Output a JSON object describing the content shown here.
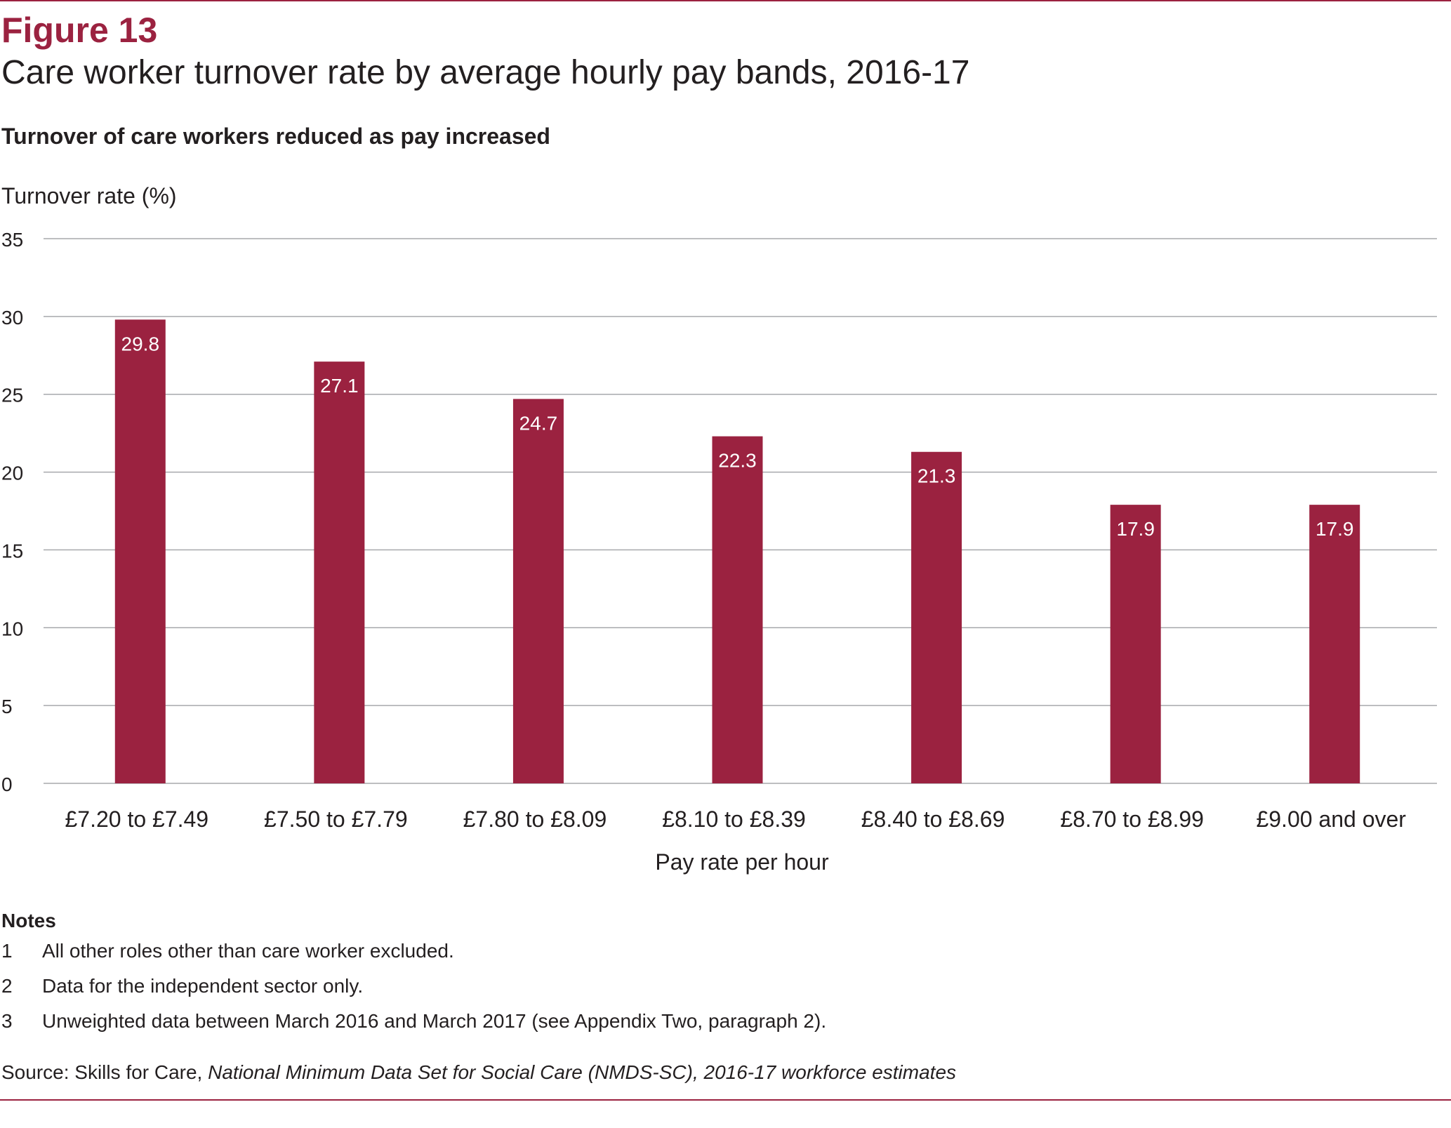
{
  "header": {
    "figure_number": "Figure 13",
    "figure_title": "Care worker turnover rate by average hourly pay bands, 2016-17",
    "subtitle": "Turnover of care workers reduced as pay increased"
  },
  "chart_data": {
    "type": "bar",
    "title": "Care worker turnover rate by average hourly pay bands, 2016-17",
    "subtitle": "Turnover of care workers reduced as pay increased",
    "ylabel": "Turnover rate (%)",
    "xlabel": "Pay rate per hour",
    "categories": [
      "£7.20 to £7.49",
      "£7.50 to £7.79",
      "£7.80 to £8.09",
      "£8.10 to £8.39",
      "£8.40 to £8.69",
      "£8.70 to £8.99",
      "£9.00 and over"
    ],
    "values": [
      29.8,
      27.1,
      24.7,
      22.3,
      21.3,
      17.9,
      17.9
    ],
    "data_labels": [
      "29.8",
      "27.1",
      "24.7",
      "22.3",
      "21.3",
      "17.9",
      "17.9"
    ],
    "ylim": [
      0,
      35
    ],
    "yticks": [
      "0",
      "5",
      "10",
      "15",
      "20",
      "25",
      "30",
      "35"
    ],
    "grid": true,
    "legend": "none",
    "bar_color": "#9b2240",
    "label_color": "#ffffff",
    "grid_color": "#a7a9ac"
  },
  "notes": {
    "heading": "Notes",
    "items": [
      {
        "num": "1",
        "text": "All other roles other than care worker excluded."
      },
      {
        "num": "2",
        "text": "Data for the independent sector only."
      },
      {
        "num": "3",
        "text": "Unweighted data between March 2016 and March 2017 (see Appendix Two, paragraph 2)."
      }
    ]
  },
  "source": {
    "prefix": "Source: Skills for Care, ",
    "work": "National Minimum Data Set for Social Care (NMDS-SC), 2016-17 workforce estimates"
  },
  "colors": {
    "accent": "#9b2240",
    "text": "#231f20"
  }
}
